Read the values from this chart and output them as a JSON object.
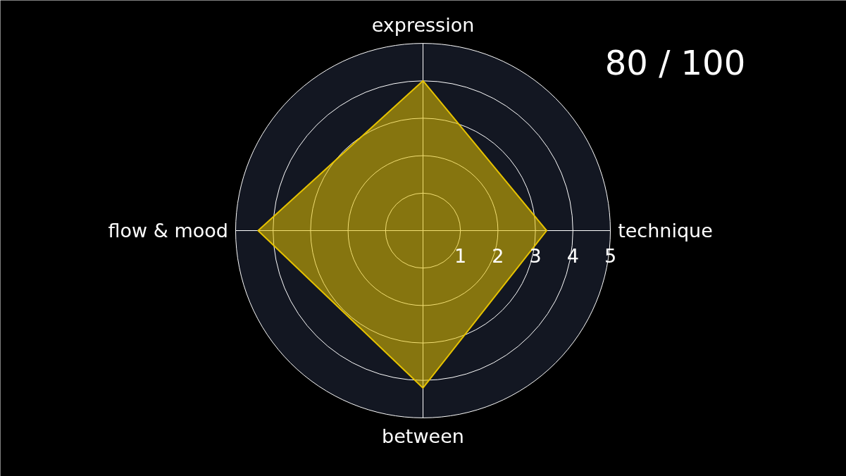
{
  "chart_data": {
    "type": "radar",
    "categories": [
      "expression",
      "technique",
      "between",
      "flow & mood"
    ],
    "series": [
      {
        "color": "#e6c200",
        "values": [
          4.0,
          3.3,
          4.2,
          4.4
        ]
      }
    ],
    "ylim": [
      0,
      5
    ],
    "yticks": [
      1,
      2,
      3,
      4,
      5
    ],
    "grid": true,
    "annotations": [
      "80 / 100"
    ]
  }
}
